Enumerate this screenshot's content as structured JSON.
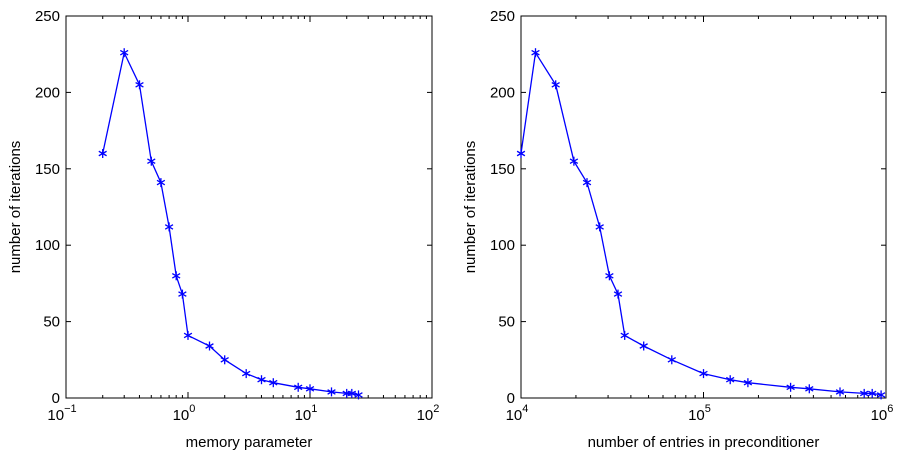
{
  "chart_data": [
    {
      "type": "line",
      "title": "",
      "xlabel": "memory parameter",
      "ylabel": "number of iterations",
      "xscale": "log",
      "xlim": [
        0.1,
        100
      ],
      "ylim": [
        0,
        250
      ],
      "xticks": [
        {
          "value": 0.1,
          "base": "10",
          "exp": "−1"
        },
        {
          "value": 1,
          "base": "10",
          "exp": "0"
        },
        {
          "value": 10,
          "base": "10",
          "exp": "1"
        },
        {
          "value": 100,
          "base": "10",
          "exp": "2"
        }
      ],
      "yticks": [
        0,
        50,
        100,
        150,
        200,
        250
      ],
      "ytick_labels": [
        "0",
        "50",
        "100",
        "150",
        "200",
        "250"
      ],
      "grid": false,
      "color": "#0000ff",
      "marker": "asterisk",
      "x": [
        0.2,
        0.3,
        0.4,
        0.5,
        0.6,
        0.7,
        0.8,
        0.9,
        1,
        1.5,
        2,
        3,
        4,
        5,
        8,
        10,
        15,
        20,
        22,
        25
      ],
      "y": [
        160,
        226,
        205,
        155,
        141,
        112,
        80,
        68,
        41,
        34,
        25,
        16,
        12,
        10,
        7,
        6,
        4,
        3,
        3,
        2
      ]
    },
    {
      "type": "line",
      "title": "",
      "xlabel": "number of entries in preconditioner",
      "ylabel": "number of iterations",
      "xscale": "log",
      "xlim": [
        10000,
        1000000
      ],
      "ylim": [
        0,
        250
      ],
      "xticks": [
        {
          "value": 10000,
          "base": "10",
          "exp": "4"
        },
        {
          "value": 100000,
          "base": "10",
          "exp": "5"
        },
        {
          "value": 1000000,
          "base": "10",
          "exp": "6"
        }
      ],
      "yticks": [
        0,
        50,
        100,
        150,
        200,
        250
      ],
      "ytick_labels": [
        "0",
        "50",
        "100",
        "150",
        "200",
        "250"
      ],
      "grid": false,
      "color": "#0000ff",
      "marker": "asterisk",
      "x": [
        10000,
        12000,
        15500,
        19500,
        23000,
        27000,
        30500,
        34000,
        37000,
        47000,
        67000,
        100000,
        140000,
        175000,
        300000,
        380000,
        560000,
        760000,
        840000,
        940000
      ],
      "y": [
        160,
        226,
        205,
        155,
        141,
        112,
        80,
        68,
        41,
        34,
        25,
        16,
        12,
        10,
        7,
        6,
        4,
        3,
        3,
        2
      ]
    }
  ]
}
